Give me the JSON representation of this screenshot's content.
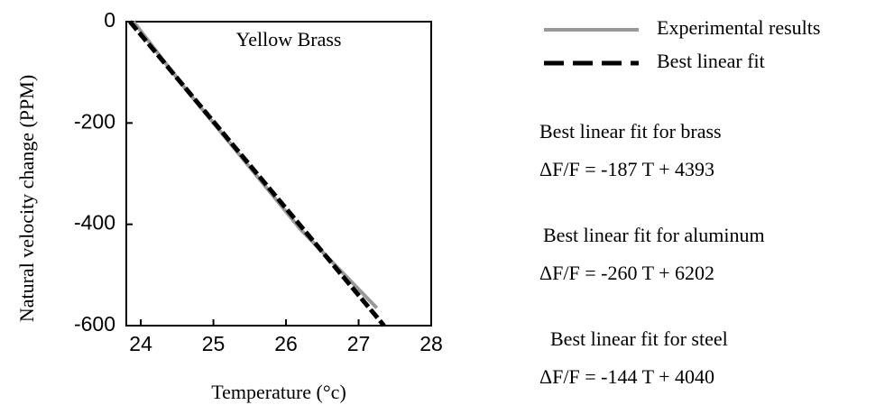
{
  "chart_data": {
    "type": "line",
    "title": "Yellow Brass",
    "xlabel": "Temperature (°c)",
    "ylabel": "Natural velocity change (PPM)",
    "xlim": [
      23.8,
      28
    ],
    "xticks": [
      24,
      25,
      26,
      27,
      28
    ],
    "ylim": [
      -600,
      0
    ],
    "yticks": [
      0,
      -200,
      -400,
      -600
    ],
    "series": [
      {
        "name": "Experimental results",
        "color": "#999999",
        "dash": false,
        "x": [
          23.9,
          24.6,
          25.4,
          26.2,
          27.25
        ],
        "y": [
          0,
          -130,
          -270,
          -410,
          -565
        ]
      },
      {
        "name": "Best linear fit",
        "color": "#000000",
        "dash": true,
        "x": [
          23.85,
          27.35
        ],
        "y": [
          0,
          -600
        ]
      }
    ],
    "annotations": [
      {
        "title": "Best linear fit for brass",
        "equation": "ΔF/F =  -187 T + 4393"
      },
      {
        "title": "Best linear fit for aluminum",
        "equation": "ΔF/F =  -260 T + 6202"
      },
      {
        "title": "Best linear fit for steel",
        "equation": "ΔF/F =  -144 T + 4040"
      }
    ]
  }
}
